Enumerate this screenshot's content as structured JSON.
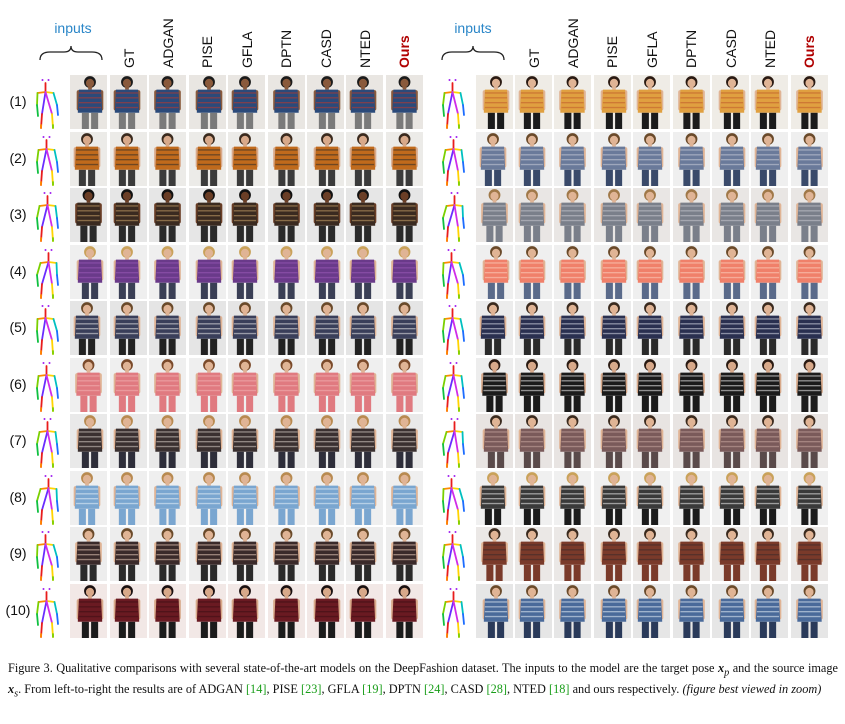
{
  "figure": {
    "inputs_label": "inputs",
    "method_headers": [
      "GT",
      "ADGAN",
      "PISE",
      "GFLA",
      "DPTN",
      "CASD",
      "NTED",
      "Ours"
    ],
    "row_labels": [
      "(1)",
      "(2)",
      "(3)",
      "(4)",
      "(5)",
      "(6)",
      "(7)",
      "(8)",
      "(9)",
      "(10)"
    ],
    "left_rows": [
      {
        "bg": "#e9e6e2",
        "garment": "#2b4a7a",
        "accent": "#c0392b",
        "skin": "#8a5a3c",
        "hair": "#1b1b1b",
        "pants": "#7a7a7a"
      },
      {
        "bg": "#ecebe8",
        "garment": "#c06a1c",
        "accent": "#2a2a2a",
        "skin": "#d8a98a",
        "hair": "#3a2a1e",
        "pants": "#3b3b3b"
      },
      {
        "bg": "#e6e6e6",
        "garment": "#3a2a20",
        "accent": "#c9a36a",
        "skin": "#6a3e26",
        "hair": "#111111",
        "pants": "#2a2a2a"
      },
      {
        "bg": "#efefef",
        "garment": "#6a3a8a",
        "accent": "#9a5ab8",
        "skin": "#e0b495",
        "hair": "#c9a25a",
        "pants": "#3a3f55"
      },
      {
        "bg": "#e5e5e5",
        "garment": "#3a3f5a",
        "accent": "#e8e8e8",
        "skin": "#e0b495",
        "hair": "#6a4a2a",
        "pants": "#222222"
      },
      {
        "bg": "#efefef",
        "garment": "#e07a80",
        "accent": "#f3b3b3",
        "skin": "#e0b495",
        "hair": "#7a4a2a",
        "pants": "#e07a80"
      },
      {
        "bg": "#e9e9e9",
        "garment": "#3a3030",
        "accent": "#d9d0c8",
        "skin": "#e0b495",
        "hair": "#b88a50",
        "pants": "#2e2e3a"
      },
      {
        "bg": "#efefef",
        "garment": "#7aa6d0",
        "accent": "#e8f0f8",
        "skin": "#e0b495",
        "hair": "#b88a50",
        "pants": "#7aa6d0"
      },
      {
        "bg": "#ededed",
        "garment": "#3a2a2a",
        "accent": "#e6c8b8",
        "skin": "#e0b495",
        "hair": "#6a4a2a",
        "pants": "#2a2a2a"
      },
      {
        "bg": "#f2e8e6",
        "garment": "#6a1a22",
        "accent": "#3a0e14",
        "skin": "#d8a98a",
        "hair": "#1a1010",
        "pants": "#1b1b1b"
      }
    ],
    "right_rows": [
      {
        "bg": "#efece6",
        "garment": "#e0a040",
        "accent": "#c05a2a",
        "skin": "#e0b495",
        "hair": "#2a1a12",
        "pants": "#1b1b1b"
      },
      {
        "bg": "#efefef",
        "garment": "#6a7a9a",
        "accent": "#c8ccd8",
        "skin": "#e0b495",
        "hair": "#6a4a2a",
        "pants": "#3a4a6a"
      },
      {
        "bg": "#e9e6e4",
        "garment": "#7a7f8a",
        "accent": "#c8c8d0",
        "skin": "#e0b495",
        "hair": "#a07848",
        "pants": "#7a7f8a"
      },
      {
        "bg": "#efefef",
        "garment": "#f0806a",
        "accent": "#fbd0c0",
        "skin": "#e0b495",
        "hair": "#6a4a2a",
        "pants": "#5a6a8a"
      },
      {
        "bg": "#ececec",
        "garment": "#2a3050",
        "accent": "#d8dce8",
        "skin": "#e0b495",
        "hair": "#3a2a1e",
        "pants": "#2a2a2a"
      },
      {
        "bg": "#ededed",
        "garment": "#1b1b1b",
        "accent": "#f0f0f0",
        "skin": "#d8a98a",
        "hair": "#2a1a12",
        "pants": "#1b1b1b"
      },
      {
        "bg": "#e8e4e2",
        "garment": "#7a5a5a",
        "accent": "#c8a8a0",
        "skin": "#e0b495",
        "hair": "#3a2a1e",
        "pants": "#5a4a4a"
      },
      {
        "bg": "#f0f0f0",
        "garment": "#3a3a3a",
        "accent": "#f0f0f0",
        "skin": "#e0b495",
        "hair": "#c9a25a",
        "pants": "#1b1b1b"
      },
      {
        "bg": "#ebe8e6",
        "garment": "#7a3a2a",
        "accent": "#3a2a2a",
        "skin": "#e0b495",
        "hair": "#3a2a1e",
        "pants": "#7a3a2a"
      },
      {
        "bg": "#e6e6e6",
        "garment": "#4a6a9a",
        "accent": "#e8eef8",
        "skin": "#e0b495",
        "hair": "#6a4a2a",
        "pants": "#2a3a5a"
      }
    ]
  },
  "caption": {
    "p1": "Figure 3. Qualitative comparisons with several state-of-the-art models on the DeepFashion dataset. The inputs to the model are the target pose ",
    "xp": "x",
    "xp_sub": "p",
    "p2": " and the source image ",
    "xs": "x",
    "xs_sub": "s",
    "p3": ". From left-to-right the results are of ADGAN ",
    "r1": "[14]",
    "p4": ", PISE ",
    "r2": "[23]",
    "p5": ", GFLA ",
    "r3": "[19]",
    "p6": ", DPTN ",
    "r4": "[24]",
    "p7": ", CASD ",
    "r5": "[28]",
    "p8": ", NTED ",
    "r6": "[18]",
    "p9": " and ours respectively. ",
    "note": "(figure best viewed in zoom)"
  }
}
